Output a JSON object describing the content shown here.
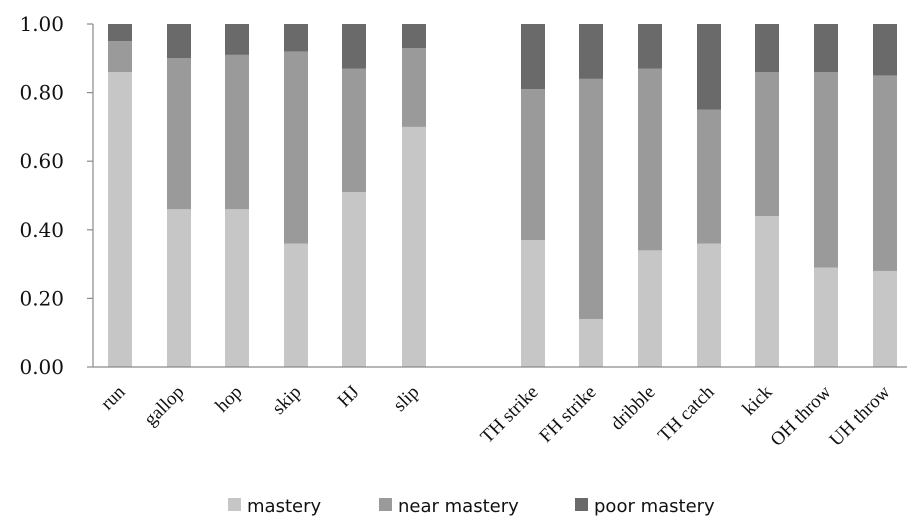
{
  "chart_data": {
    "type": "bar",
    "stacked": true,
    "categories": [
      "run",
      "gallop",
      "hop",
      "skip",
      "HJ",
      "slip",
      "TH strike",
      "FH strike",
      "dribble",
      "TH catch",
      "kick",
      "OH throw",
      "UH throw"
    ],
    "series": [
      {
        "name": "mastery",
        "color": "#c6c6c6",
        "values": [
          0.86,
          0.46,
          0.46,
          0.36,
          0.51,
          0.7,
          0.37,
          0.14,
          0.34,
          0.36,
          0.44,
          0.29,
          0.28
        ]
      },
      {
        "name": "near mastery",
        "color": "#9a9a9a",
        "values": [
          0.09,
          0.44,
          0.45,
          0.56,
          0.36,
          0.23,
          0.44,
          0.7,
          0.53,
          0.39,
          0.42,
          0.57,
          0.57
        ]
      },
      {
        "name": "poor mastery",
        "color": "#6a6a6a",
        "values": [
          0.05,
          0.1,
          0.09,
          0.08,
          0.13,
          0.07,
          0.19,
          0.16,
          0.13,
          0.25,
          0.14,
          0.14,
          0.15
        ]
      }
    ],
    "yticks": [
      "0.00",
      "0.20",
      "0.40",
      "0.60",
      "0.80",
      "1.00"
    ],
    "ylim": [
      0,
      1
    ],
    "grid": false,
    "legend_position": "bottom"
  }
}
